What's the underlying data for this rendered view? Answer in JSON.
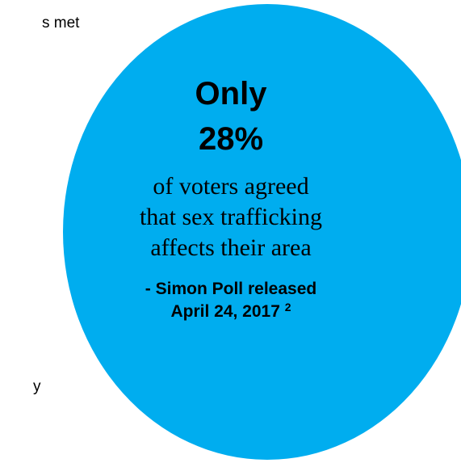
{
  "left_fragments": {
    "top": "s met",
    "bottom": "y"
  },
  "circle": {
    "fill_color": "#00adef",
    "headline_line1": "Only",
    "headline_line2": "28%",
    "body_lines": [
      "of voters agreed",
      "that sex trafficking",
      "affects their area"
    ],
    "source_line1": "- Simon Poll released",
    "source_line2": "April 24, 2017",
    "footnote": "2"
  }
}
